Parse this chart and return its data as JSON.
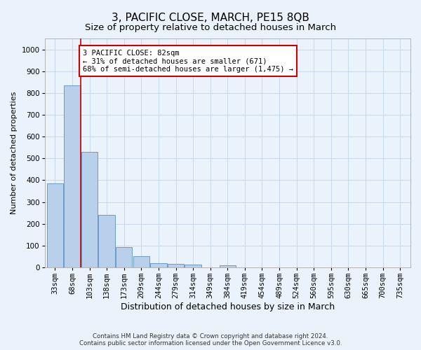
{
  "title": "3, PACIFIC CLOSE, MARCH, PE15 8QB",
  "subtitle": "Size of property relative to detached houses in March",
  "xlabel": "Distribution of detached houses by size in March",
  "ylabel": "Number of detached properties",
  "footer_line1": "Contains HM Land Registry data © Crown copyright and database right 2024.",
  "footer_line2": "Contains public sector information licensed under the Open Government Licence v3.0.",
  "bin_labels": [
    "33sqm",
    "68sqm",
    "103sqm",
    "138sqm",
    "173sqm",
    "209sqm",
    "244sqm",
    "279sqm",
    "314sqm",
    "349sqm",
    "384sqm",
    "419sqm",
    "454sqm",
    "489sqm",
    "524sqm",
    "560sqm",
    "595sqm",
    "630sqm",
    "665sqm",
    "700sqm",
    "735sqm"
  ],
  "bar_values": [
    385,
    835,
    530,
    240,
    93,
    50,
    18,
    15,
    12,
    0,
    10,
    0,
    0,
    0,
    0,
    0,
    0,
    0,
    0,
    0,
    0
  ],
  "bar_color": "#b8d0ea",
  "bar_edge_color": "#5a8fc2",
  "property_line_x": 1.5,
  "annotation_text": "3 PACIFIC CLOSE: 82sqm\n← 31% of detached houses are smaller (671)\n68% of semi-detached houses are larger (1,475) →",
  "annotation_box_color": "#ffffff",
  "annotation_box_edge_color": "#cc0000",
  "vline_color": "#cc0000",
  "ylim": [
    0,
    1050
  ],
  "grid_color": "#c8d8e8",
  "background_color": "#eaf2fb",
  "title_fontsize": 11,
  "subtitle_fontsize": 9.5,
  "xlabel_fontsize": 9,
  "ylabel_fontsize": 8,
  "tick_fontsize": 7.5
}
